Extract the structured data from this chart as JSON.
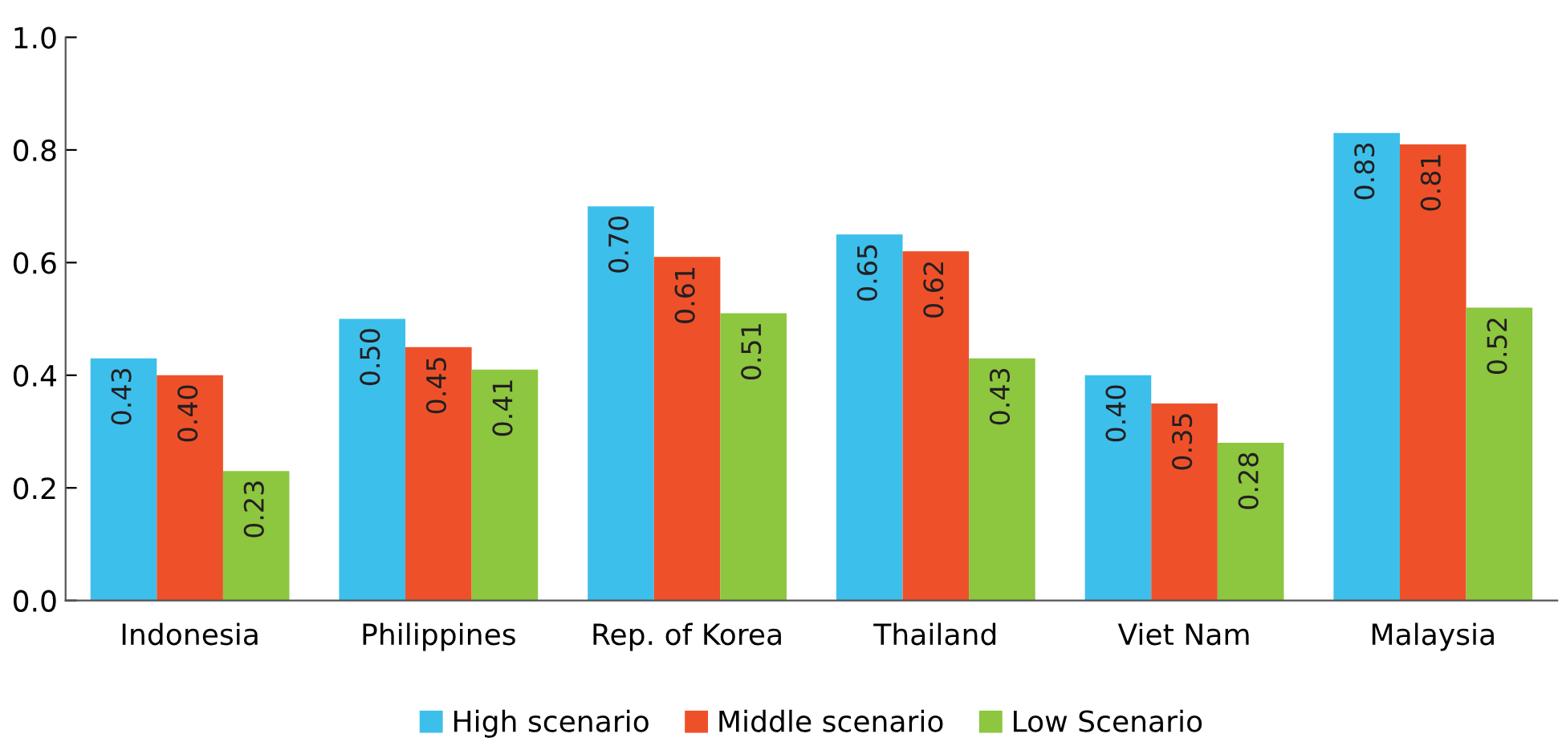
{
  "chart_data": {
    "type": "bar",
    "categories": [
      "Indonesia",
      "Philippines",
      "Rep. of Korea",
      "Thailand",
      "Viet Nam",
      "Malaysia"
    ],
    "series": [
      {
        "name": "High scenario",
        "color": "#3dbfeb",
        "values": [
          0.43,
          0.5,
          0.7,
          0.65,
          0.4,
          0.83
        ],
        "value_labels": [
          "0.43",
          "0.50",
          "0.70",
          "0.65",
          "0.40",
          "0.83"
        ]
      },
      {
        "name": "Middle scenario",
        "color": "#ee5129",
        "values": [
          0.4,
          0.45,
          0.61,
          0.62,
          0.35,
          0.81
        ],
        "value_labels": [
          "0.40",
          "0.45",
          "0.61",
          "0.62",
          "0.35",
          "0.81"
        ]
      },
      {
        "name": "Low Scenario",
        "color": "#8dc63f",
        "values": [
          0.23,
          0.41,
          0.51,
          0.43,
          0.28,
          0.52
        ],
        "value_labels": [
          "0.23",
          "0.41",
          "0.51",
          "0.43",
          "0.28",
          "0.52"
        ]
      }
    ],
    "ylim": [
      0,
      1.0
    ],
    "yticks": [
      {
        "value": 0,
        "label": "0.0"
      },
      {
        "value": 0.2,
        "label": "0.2"
      },
      {
        "value": 0.4,
        "label": "0.4"
      },
      {
        "value": 0.6,
        "label": "0.6"
      },
      {
        "value": 0.8,
        "label": "0.8"
      },
      {
        "value": 1.0,
        "label": "1.0"
      }
    ],
    "grid": false,
    "legend": "bottom"
  }
}
